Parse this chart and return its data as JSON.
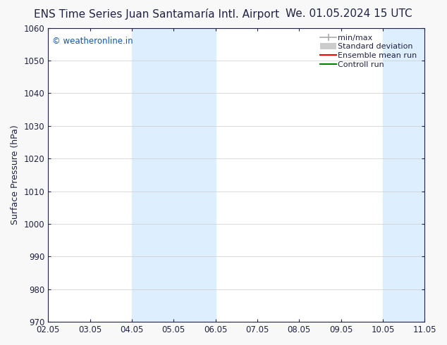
{
  "title_left": "ENS Time Series Juan Santamaría Intl. Airport",
  "title_right": "We. 01.05.2024 15 UTC",
  "ylabel": "Surface Pressure (hPa)",
  "xlabel_ticks": [
    "02.05",
    "03.05",
    "04.05",
    "05.05",
    "06.05",
    "07.05",
    "08.05",
    "09.05",
    "10.05",
    "11.05"
  ],
  "xlim": [
    0,
    9
  ],
  "ylim": [
    970,
    1060
  ],
  "yticks": [
    970,
    980,
    990,
    1000,
    1010,
    1020,
    1030,
    1040,
    1050,
    1060
  ],
  "shaded_bands": [
    {
      "x_start": 2.0,
      "x_end": 3.0,
      "color": "#ddeeff"
    },
    {
      "x_start": 3.0,
      "x_end": 4.0,
      "color": "#ddeeff"
    },
    {
      "x_start": 8.0,
      "x_end": 9.0,
      "color": "#ddeeff"
    }
  ],
  "watermark": "© weatheronline.in",
  "watermark_color": "#1155aa",
  "fig_bg": "#f8f8f8",
  "plot_bg": "#ffffff",
  "text_color": "#222244",
  "spine_color": "#222244",
  "tick_color": "#222244",
  "legend_items": [
    {
      "label": "min/max",
      "color": "#aaaaaa"
    },
    {
      "label": "Standard deviation",
      "color": "#cccccc"
    },
    {
      "label": "Ensemble mean run",
      "color": "red"
    },
    {
      "label": "Controll run",
      "color": "green"
    }
  ],
  "title_fontsize": 11,
  "axis_label_fontsize": 9,
  "tick_fontsize": 8.5,
  "legend_fontsize": 8,
  "grid_color": "#cccccc"
}
